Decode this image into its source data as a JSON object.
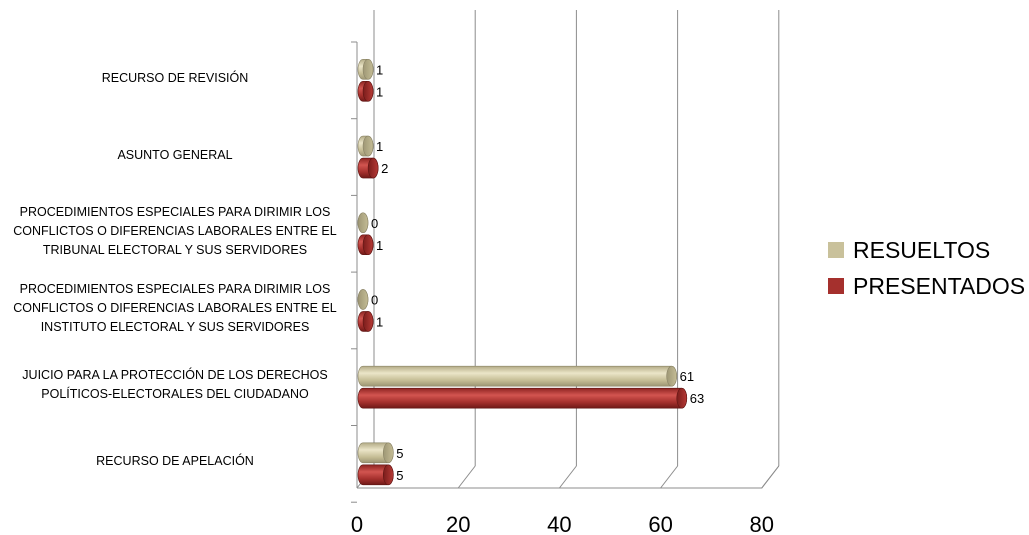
{
  "chart_data": {
    "type": "bar",
    "orientation": "horizontal",
    "categories": [
      "RECURSO DE REVISIÓN",
      "ASUNTO GENERAL",
      "PROCEDIMIENTOS ESPECIALES PARA DIRIMIR LOS CONFLICTOS O DIFERENCIAS LABORALES ENTRE EL TRIBUNAL ELECTORAL Y SUS SERVIDORES",
      "PROCEDIMIENTOS ESPECIALES PARA DIRIMIR LOS CONFLICTOS O DIFERENCIAS LABORALES ENTRE EL INSTITUTO ELECTORAL Y SUS SERVIDORES",
      "JUICIO PARA LA PROTECCIÓN DE LOS DERECHOS POLÍTICOS-ELECTORALES DEL CIUDADANO",
      "RECURSO DE APELACIÓN"
    ],
    "category_lines": [
      [
        "RECURSO DE REVISIÓN"
      ],
      [
        "ASUNTO GENERAL"
      ],
      [
        "PROCEDIMIENTOS ESPECIALES PARA DIRIMIR LOS",
        "CONFLICTOS O DIFERENCIAS LABORALES ENTRE EL",
        "TRIBUNAL ELECTORAL Y SUS SERVIDORES"
      ],
      [
        "PROCEDIMIENTOS ESPECIALES PARA DIRIMIR LOS",
        "CONFLICTOS O DIFERENCIAS LABORALES ENTRE EL",
        "INSTITUTO ELECTORAL Y SUS SERVIDORES"
      ],
      [
        "JUICIO PARA LA PROTECCIÓN DE LOS DERECHOS",
        "POLÍTICOS-ELECTORALES DEL CIUDADANO"
      ],
      [
        "RECURSO DE APELACIÓN"
      ]
    ],
    "series": [
      {
        "name": "RESUELTOS",
        "values": [
          1,
          1,
          0,
          0,
          61,
          5
        ],
        "color": "#c9c19b"
      },
      {
        "name": "PRESENTADOS",
        "values": [
          1,
          2,
          1,
          1,
          63,
          5
        ],
        "color": "#a5302d"
      }
    ],
    "xlim": [
      0,
      80
    ],
    "xticks": [
      "0",
      "20",
      "40",
      "60",
      "80"
    ],
    "grid": true,
    "legend_position": "right",
    "title": "",
    "xlabel": "",
    "ylabel": ""
  }
}
